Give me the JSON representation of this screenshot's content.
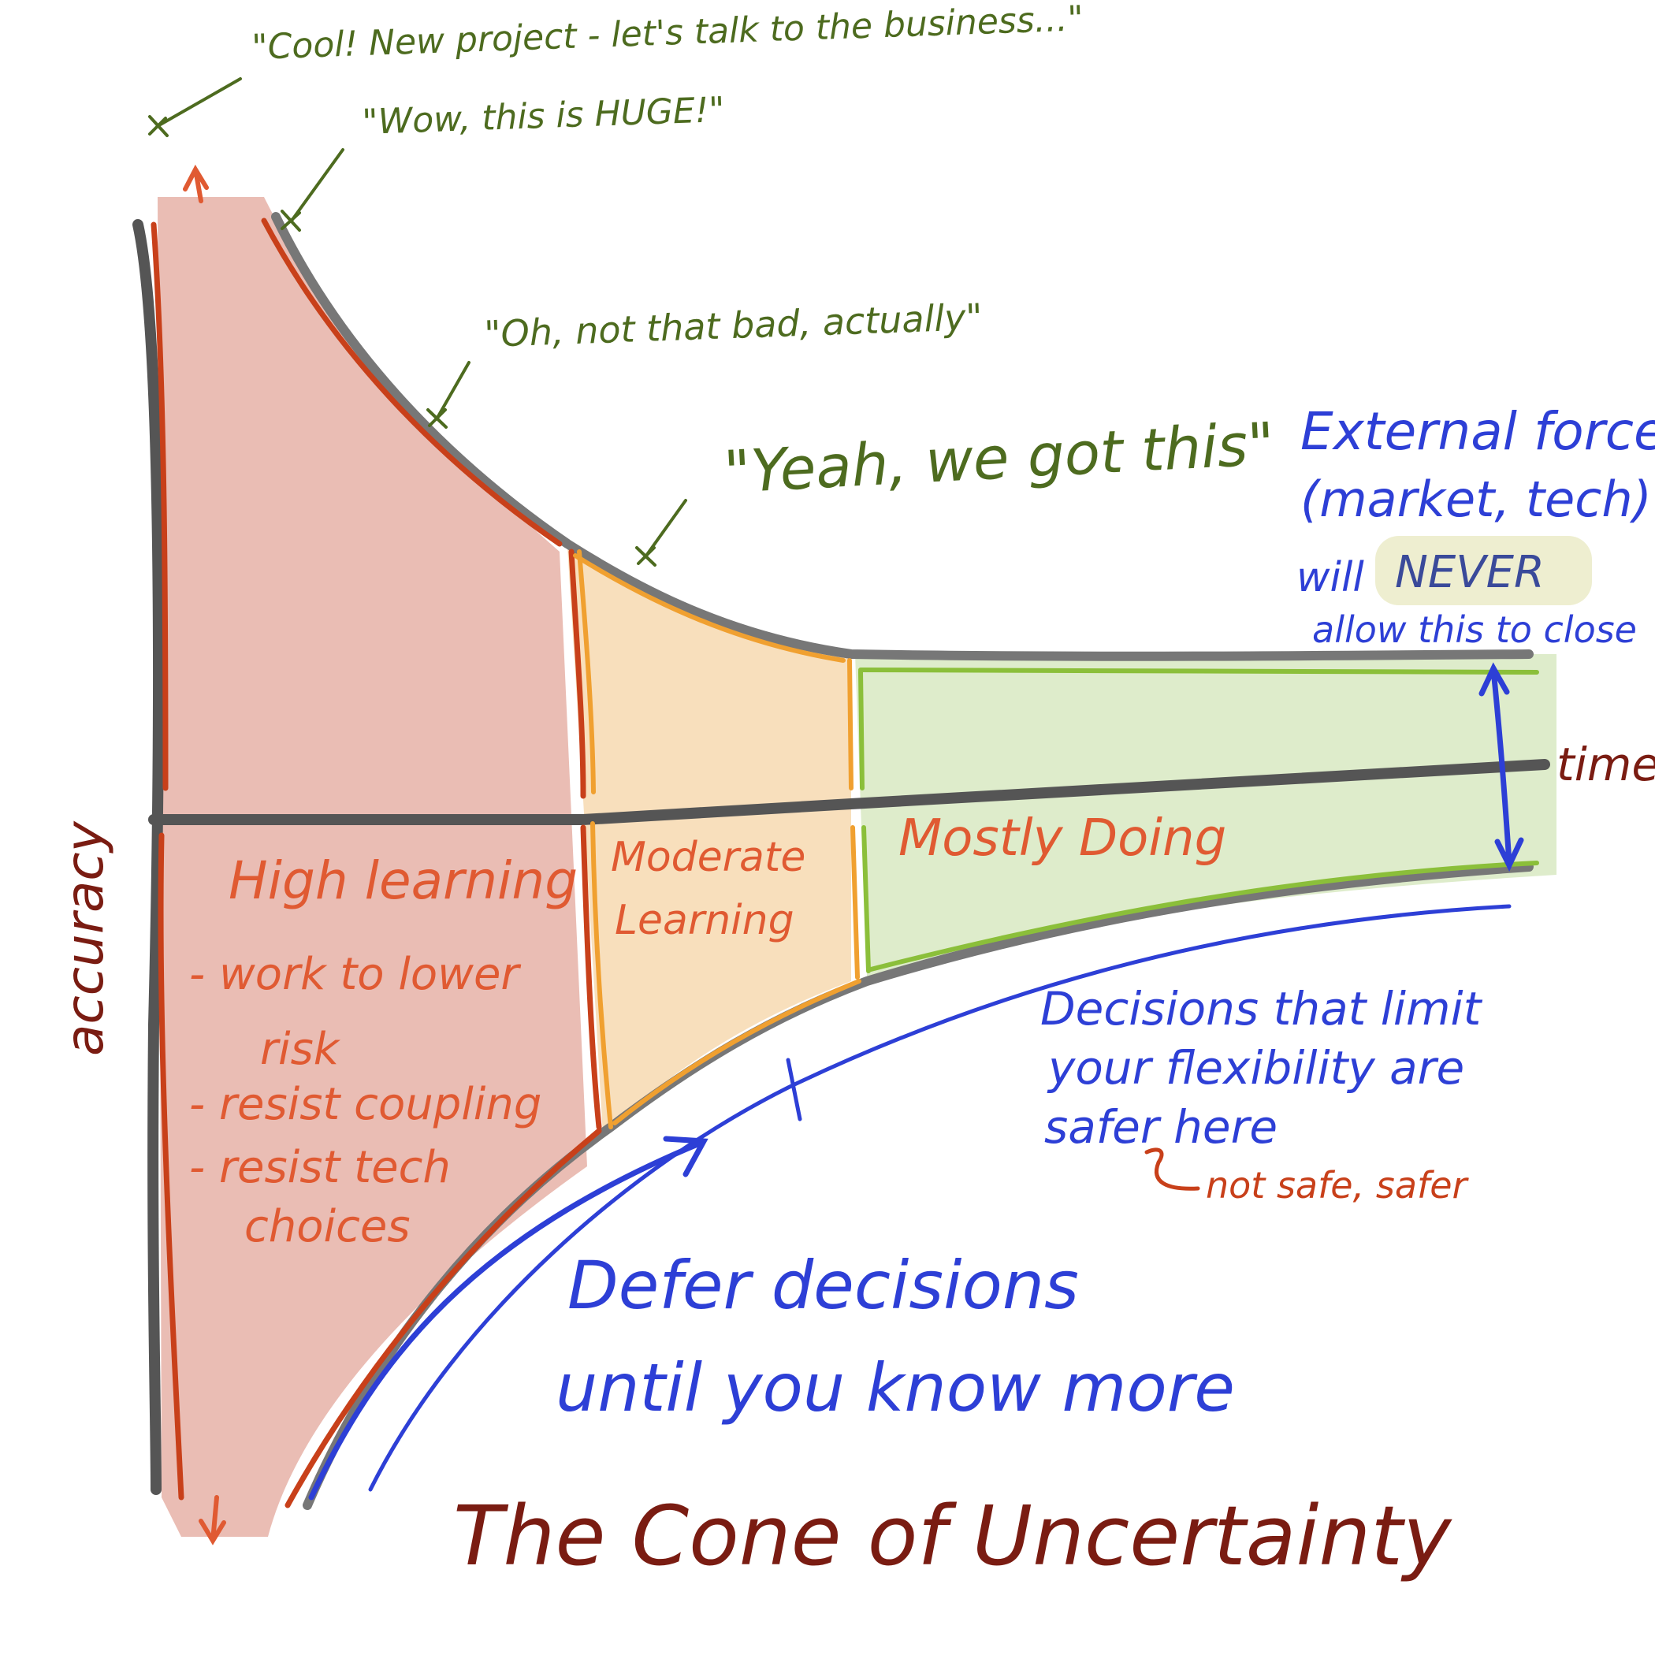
{
  "quotes": {
    "q1": "\"Cool! New project - let's talk to the business...\"",
    "q2": "\"Wow, this is HUGE!\"",
    "q3": "\"Oh, not that bad, actually\"",
    "q4": "\"Yeah, we got this\""
  },
  "external_forces": {
    "line1": "External forces",
    "line2": "(market, tech)",
    "line3_pre": "will",
    "line3_highlight": "NEVER",
    "line4": "allow this to close"
  },
  "axes": {
    "y_label": "accuracy",
    "x_label": "time"
  },
  "zones": {
    "high": {
      "title": "High learning",
      "bullets": [
        "- work to lower",
        "risk",
        "- resist coupling",
        "- resist tech",
        "choices"
      ]
    },
    "moderate": {
      "line1": "Moderate",
      "line2": "Learning"
    },
    "doing": {
      "title": "Mostly Doing"
    }
  },
  "decisions_note": {
    "line1": "Decisions that limit",
    "line2": "your flexibility are",
    "line3": "safer here",
    "aside": "not safe, safer"
  },
  "defer": {
    "line1": "Defer decisions",
    "line2": "until you know more"
  },
  "title": "The Cone of Uncertainty",
  "colors": {
    "red_zone": "#e8b6ac",
    "orange_zone": "#f8ddb8",
    "green_zone": "#dcebc8",
    "axis": "#555555",
    "red_line": "#c8401a",
    "orange_line": "#f0a030",
    "green_line": "#8bbf3a",
    "blue": "#2d3fd6",
    "green_text": "#4d6b1f",
    "red_text": "#e05a32",
    "dark_red_text": "#7a1c12",
    "highlight": "#eeeed0"
  }
}
